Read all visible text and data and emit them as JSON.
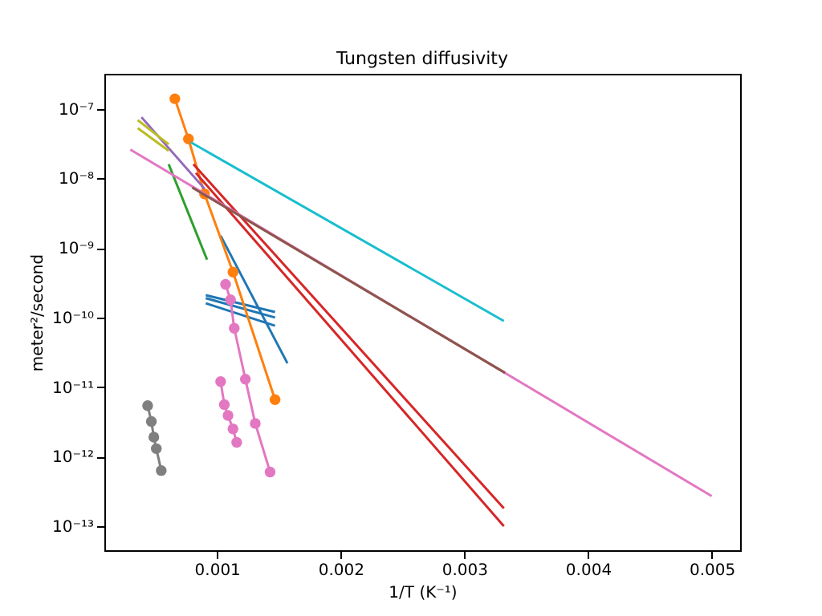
{
  "chart_data": {
    "type": "line",
    "title": "Tungsten diffusivity",
    "xlabel": "1/T (K⁻¹)",
    "ylabel": "meter²/second",
    "log": "y",
    "grid": false,
    "line_style": "solid",
    "xlim": [
      9e-05,
      0.00523
    ],
    "xticks": [
      0.001,
      0.002,
      0.003,
      0.004,
      0.005
    ],
    "ylim": [
      4.5e-14,
      3.2e-07
    ],
    "yticks": [
      {
        "value": 1e-07,
        "label": "10⁻⁷"
      },
      {
        "value": 1e-08,
        "label": "10⁻⁸"
      },
      {
        "value": 1e-09,
        "label": "10⁻⁹"
      },
      {
        "value": 1e-10,
        "label": "10⁻¹⁰"
      },
      {
        "value": 1e-11,
        "label": "10⁻¹¹"
      },
      {
        "value": 1e-12,
        "label": "10⁻¹²"
      },
      {
        "value": 1e-13,
        "label": "10⁻¹³"
      }
    ],
    "series": [
      {
        "color": "#1f77b4",
        "marker": "none",
        "x": [
          0.00103,
          0.00157
        ],
        "values": [
          1.5e-09,
          2.2e-11
        ]
      },
      {
        "color": "#1f77b4",
        "marker": "none",
        "x": [
          0.00091,
          0.00147
        ],
        "values": [
          2.1e-10,
          1.2e-10
        ]
      },
      {
        "color": "#1f77b4",
        "marker": "none",
        "x": [
          0.00091,
          0.00147
        ],
        "values": [
          1.9e-10,
          1e-10
        ]
      },
      {
        "color": "#1f77b4",
        "marker": "none",
        "x": [
          0.00091,
          0.00147
        ],
        "values": [
          1.6e-10,
          7.6e-11
        ]
      },
      {
        "color": "#ff7f0e",
        "marker": "circle",
        "x": [
          0.00066,
          0.00077,
          0.0009,
          0.00113,
          0.00147
        ],
        "values": [
          1.4e-07,
          3.7e-08,
          6e-09,
          4.5e-10,
          6.6e-12
        ]
      },
      {
        "color": "#2ca02c",
        "marker": "none",
        "x": [
          0.00061,
          0.00092
        ],
        "values": [
          1.6e-08,
          6.8e-10
        ]
      },
      {
        "color": "#d62728",
        "marker": "none",
        "x": [
          0.00081,
          0.00332
        ],
        "values": [
          1.6e-08,
          1.8e-13
        ]
      },
      {
        "color": "#d62728",
        "marker": "none",
        "x": [
          0.00083,
          0.00332
        ],
        "values": [
          1.2e-08,
          1e-13
        ]
      },
      {
        "color": "#9467bd",
        "marker": "none",
        "x": [
          0.00039,
          0.0009
        ],
        "values": [
          7.6e-08,
          7.1e-09
        ]
      },
      {
        "color": "#e377c2",
        "marker": "none",
        "x": [
          0.0003,
          0.005
        ],
        "values": [
          2.6e-08,
          2.7e-13
        ]
      },
      {
        "color": "#8c564b",
        "marker": "none",
        "x": [
          0.0008,
          0.00333
        ],
        "values": [
          7.4e-09,
          1.6e-11
        ]
      },
      {
        "color": "#17becf",
        "marker": "none",
        "x": [
          0.00079,
          0.00332
        ],
        "values": [
          3.3e-08,
          8.9e-11
        ]
      },
      {
        "color": "#bcbd22",
        "marker": "none",
        "x": [
          0.00036,
          0.00061
        ],
        "values": [
          6.9e-08,
          3.1e-08
        ]
      },
      {
        "color": "#bcbd22",
        "marker": "none",
        "x": [
          0.00036,
          0.00061
        ],
        "values": [
          5.3e-08,
          2.5e-08
        ]
      },
      {
        "color": "#e377c2",
        "marker": "circle",
        "x": [
          0.00107,
          0.00111,
          0.00114,
          0.00123,
          0.00131,
          0.00143
        ],
        "values": [
          3e-10,
          1.8e-10,
          7e-11,
          1.3e-11,
          3e-12,
          6e-13
        ]
      },
      {
        "color": "#e377c2",
        "marker": "circle",
        "x": [
          0.00103,
          0.00106,
          0.00109,
          0.00113,
          0.00116
        ],
        "values": [
          1.2e-11,
          5.6e-12,
          3.9e-12,
          2.5e-12,
          1.6e-12
        ]
      },
      {
        "color": "#7f7f7f",
        "marker": "circle",
        "x": [
          0.00044,
          0.00047,
          0.00049,
          0.00051,
          0.00055
        ],
        "values": [
          5.4e-12,
          3.2e-12,
          1.9e-12,
          1.3e-12,
          6.3e-13
        ]
      }
    ]
  }
}
